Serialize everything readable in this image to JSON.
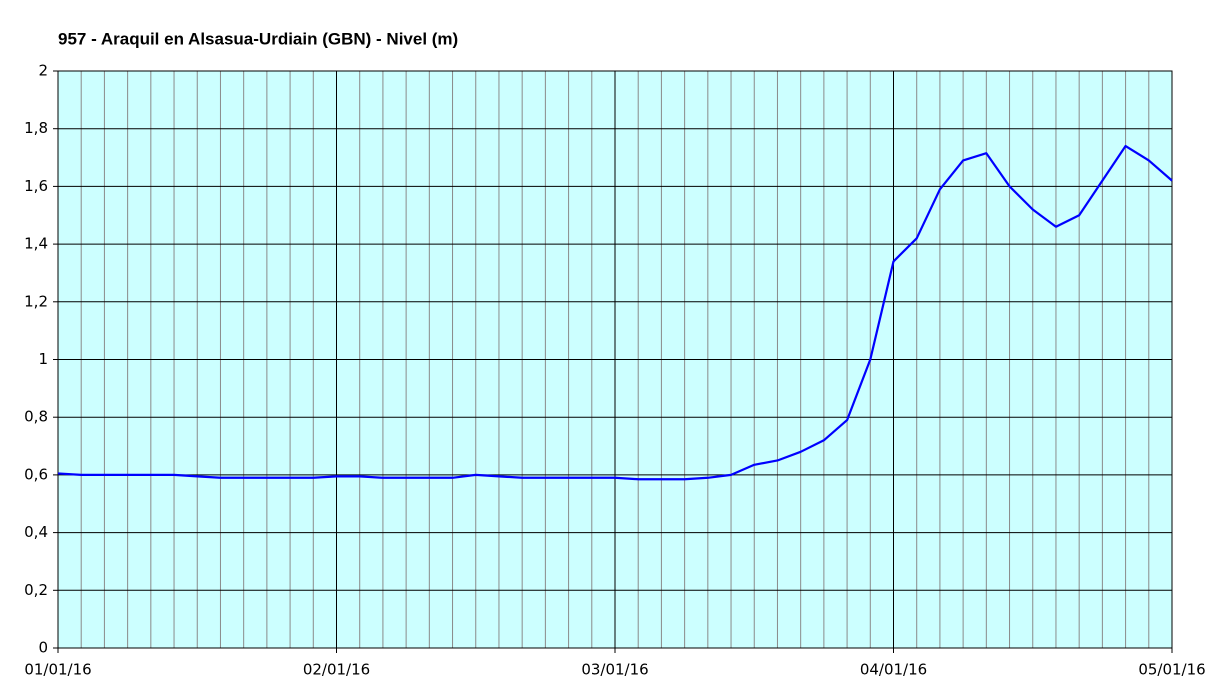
{
  "chart_data": {
    "type": "line",
    "title": "957 - Araquil en Alsasua-Urdiain (GBN) - Nivel (m)",
    "x": [
      0,
      2,
      4,
      6,
      8,
      10,
      12,
      14,
      16,
      18,
      20,
      22,
      24,
      26,
      28,
      30,
      32,
      34,
      36,
      38,
      40,
      42,
      44,
      46,
      48,
      50,
      52,
      54,
      56,
      58,
      60,
      62,
      64,
      66,
      68,
      70,
      72,
      74,
      76,
      78,
      80,
      82,
      84,
      86,
      88,
      90,
      92,
      94,
      96
    ],
    "series": [
      {
        "name": "Nivel",
        "color": "#0000ff",
        "values": [
          0.605,
          0.6,
          0.6,
          0.6,
          0.6,
          0.6,
          0.595,
          0.59,
          0.59,
          0.59,
          0.59,
          0.59,
          0.595,
          0.595,
          0.59,
          0.59,
          0.59,
          0.59,
          0.6,
          0.595,
          0.59,
          0.59,
          0.59,
          0.59,
          0.59,
          0.585,
          0.585,
          0.585,
          0.59,
          0.6,
          0.635,
          0.65,
          0.68,
          0.72,
          0.79,
          1.0,
          1.34,
          1.42,
          1.59,
          1.69,
          1.715,
          1.6,
          1.52,
          1.46,
          1.5,
          1.62,
          1.74,
          1.69,
          1.62
        ]
      }
    ],
    "xlim": [
      0,
      96
    ],
    "xticks": [
      {
        "value": 0,
        "label": "01/01/16"
      },
      {
        "value": 24,
        "label": "02/01/16"
      },
      {
        "value": 48,
        "label": "03/01/16"
      },
      {
        "value": 72,
        "label": "04/01/16"
      },
      {
        "value": 96,
        "label": "05/01/16"
      }
    ],
    "xminorticks": [
      2,
      4,
      6,
      8,
      10,
      12,
      14,
      16,
      18,
      20,
      22,
      26,
      28,
      30,
      32,
      34,
      36,
      38,
      40,
      42,
      44,
      46,
      50,
      52,
      54,
      56,
      58,
      60,
      62,
      64,
      66,
      68,
      70,
      74,
      76,
      78,
      80,
      82,
      84,
      86,
      88,
      90,
      92,
      94
    ],
    "ylim": [
      0,
      2
    ],
    "yticks": [
      0,
      {
        "value": 0.2,
        "label": "0,2"
      },
      {
        "value": 0.4,
        "label": "0,4"
      },
      {
        "value": 0.6,
        "label": "0,6"
      },
      {
        "value": 0.8,
        "label": "0,8"
      },
      1,
      {
        "value": 1.2,
        "label": "1,2"
      },
      {
        "value": 1.4,
        "label": "1,4"
      },
      {
        "value": 1.6,
        "label": "1,6"
      },
      {
        "value": 1.8,
        "label": "1,8"
      },
      2
    ],
    "grid": true,
    "plot_background": "#ccffff"
  }
}
